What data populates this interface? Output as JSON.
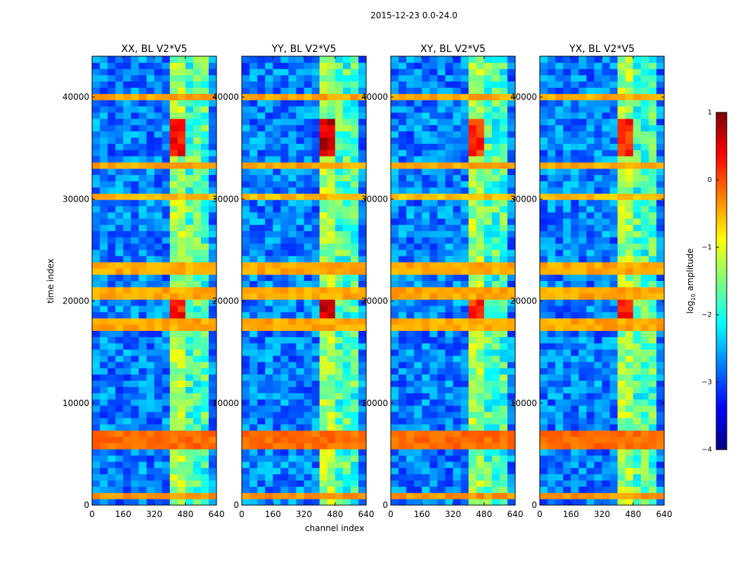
{
  "chart_data": {
    "type": "heatmap",
    "suptitle": "2015-12-23 0.0-24.0",
    "xlabel": "channel index",
    "ylabel": "time index",
    "xlim": [
      0,
      640
    ],
    "ylim": [
      0,
      44000
    ],
    "xticks": [
      0,
      160,
      320,
      480,
      640
    ],
    "yticks": [
      0,
      10000,
      20000,
      30000,
      40000
    ],
    "panels": [
      {
        "title": "XX, BL V2*V5",
        "pol": "XX",
        "bright_band_channels": [
          400,
          470
        ],
        "peak_log_amp": 0.6
      },
      {
        "title": "YY, BL V2*V5",
        "pol": "YY",
        "bright_band_channels": [
          400,
          470
        ],
        "peak_log_amp": 0.9
      },
      {
        "title": "XY, BL V2*V5",
        "pol": "XY",
        "bright_band_channels": [
          400,
          470
        ],
        "peak_log_amp": 0.5
      },
      {
        "title": "YX, BL V2*V5",
        "pol": "YX",
        "bright_band_channels": [
          400,
          470
        ],
        "peak_log_amp": 0.5
      }
    ],
    "rfi_time_bands": [
      {
        "start": 5500,
        "end": 6800,
        "level": 0
      },
      {
        "start": 800,
        "end": 1000,
        "level": -0.2
      },
      {
        "start": 17200,
        "end": 17500,
        "level": -0.3
      },
      {
        "start": 17900,
        "end": 18100,
        "level": -0.3
      },
      {
        "start": 20500,
        "end": 20800,
        "level": -0.3
      },
      {
        "start": 23000,
        "end": 23300,
        "level": -0.3
      },
      {
        "start": 30200,
        "end": 30400,
        "level": -0.4
      },
      {
        "start": 33000,
        "end": 33200,
        "level": -0.3
      },
      {
        "start": 40000,
        "end": 40200,
        "level": -0.3
      }
    ],
    "colorbar": {
      "label": "log₁₀ amplitude",
      "label_prefix": "log",
      "label_sub": "10",
      "label_suffix": " amplitude",
      "range": [
        -4,
        1
      ],
      "ticks": [
        1,
        0,
        -1,
        -2,
        -3,
        -4
      ],
      "tick_labels": [
        "1",
        "0",
        "−1",
        "−2",
        "−3",
        "−4"
      ],
      "colormap": "jet",
      "colormap_stops": [
        "#00007f",
        "#0000ff",
        "#007fff",
        "#00ffff",
        "#7fff7f",
        "#ffff00",
        "#ff7f00",
        "#ff0000",
        "#7f0000"
      ]
    }
  }
}
